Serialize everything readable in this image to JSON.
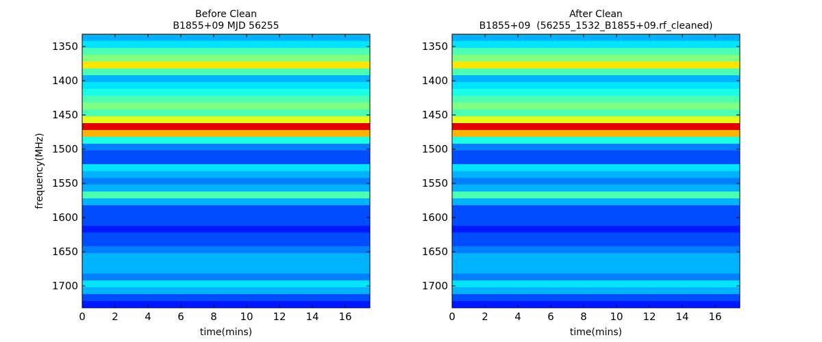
{
  "chart_data": [
    {
      "type": "heatmap",
      "title": "Before Clean",
      "subtitle": "B1855+09 MJD 56255",
      "x_label": "time(mins)",
      "y_label": "frequency(MHz)",
      "colormap": "jet",
      "xlim": [
        0,
        17.5
      ],
      "xticks": [
        0,
        2,
        4,
        6,
        8,
        10,
        12,
        14,
        16
      ],
      "ylim": [
        1732,
        1332
      ],
      "yticks": [
        1350,
        1400,
        1450,
        1500,
        1550,
        1600,
        1650,
        1700
      ],
      "frequencies": [
        1337,
        1347,
        1357,
        1367,
        1377,
        1387,
        1397,
        1407,
        1417,
        1427,
        1437,
        1447,
        1457,
        1467,
        1477,
        1487,
        1497,
        1507,
        1517,
        1527,
        1537,
        1547,
        1557,
        1567,
        1577,
        1587,
        1597,
        1607,
        1617,
        1627,
        1637,
        1647,
        1657,
        1667,
        1677,
        1687,
        1697,
        1707,
        1717,
        1727
      ],
      "values": [
        0.3,
        0.35,
        0.45,
        0.5,
        0.65,
        0.45,
        0.3,
        0.35,
        0.4,
        0.45,
        0.5,
        0.45,
        0.6,
        0.9,
        0.7,
        0.4,
        0.25,
        0.2,
        0.2,
        0.35,
        0.3,
        0.25,
        0.3,
        0.45,
        0.3,
        0.2,
        0.2,
        0.2,
        0.15,
        0.2,
        0.2,
        0.25,
        0.3,
        0.3,
        0.3,
        0.25,
        0.35,
        0.3,
        0.2,
        0.15
      ]
    },
    {
      "type": "heatmap",
      "title": "After Clean",
      "subtitle": "B1855+09  (56255_1532_B1855+09.rf_cleaned)",
      "x_label": "time(mins)",
      "colormap": "jet",
      "xlim": [
        0,
        17.5
      ],
      "xticks": [
        0,
        2,
        4,
        6,
        8,
        10,
        12,
        14,
        16
      ],
      "ylim": [
        1732,
        1332
      ],
      "yticks": [
        1350,
        1400,
        1450,
        1500,
        1550,
        1600,
        1650,
        1700
      ],
      "frequencies": [
        1337,
        1347,
        1357,
        1367,
        1377,
        1387,
        1397,
        1407,
        1417,
        1427,
        1437,
        1447,
        1457,
        1467,
        1477,
        1487,
        1497,
        1507,
        1517,
        1527,
        1537,
        1547,
        1557,
        1567,
        1577,
        1587,
        1597,
        1607,
        1617,
        1627,
        1637,
        1647,
        1657,
        1667,
        1677,
        1687,
        1697,
        1707,
        1717,
        1727
      ],
      "values": [
        0.3,
        0.35,
        0.45,
        0.5,
        0.65,
        0.45,
        0.3,
        0.35,
        0.4,
        0.45,
        0.5,
        0.45,
        0.6,
        0.9,
        0.7,
        0.4,
        0.25,
        0.2,
        0.2,
        0.35,
        0.3,
        0.25,
        0.3,
        0.45,
        0.3,
        0.2,
        0.2,
        0.2,
        0.15,
        0.2,
        0.2,
        0.25,
        0.3,
        0.3,
        0.3,
        0.25,
        0.35,
        0.3,
        0.2,
        0.15
      ]
    }
  ]
}
